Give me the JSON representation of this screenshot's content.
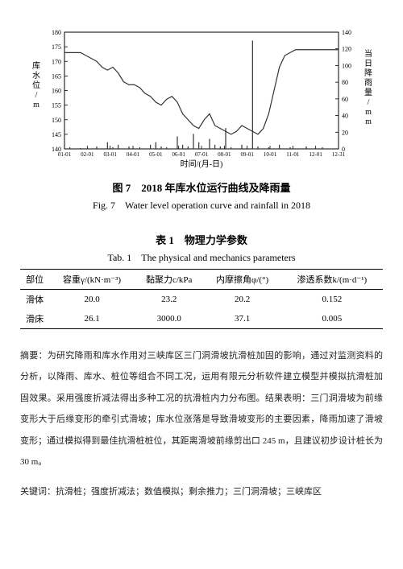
{
  "chart": {
    "type": "line+bar",
    "background_color": "#ffffff",
    "grid_color": "#cccccc",
    "axis_color": "#000000",
    "line_color": "#333333",
    "bar_color": "#333333",
    "line_width": 1.2,
    "bar_width": 1,
    "y1_label_vertical": "库水位/m",
    "y2_label_vertical": "当日降雨量/mm",
    "x_label": "时间/(月-日)",
    "y1_ticks": [
      140,
      145,
      150,
      155,
      160,
      165,
      170,
      175,
      180
    ],
    "y1_lim": [
      140,
      180
    ],
    "y2_ticks": [
      0,
      20,
      40,
      60,
      80,
      100,
      120,
      140
    ],
    "y2_lim": [
      0,
      140
    ],
    "x_ticks": [
      "01-01",
      "02-01",
      "03-01",
      "04-01",
      "05-01",
      "06-01",
      "07-01",
      "08-01",
      "09-01",
      "10-01",
      "11-01",
      "12-01",
      "12-31"
    ],
    "label_fontsize": 10,
    "tick_fontsize": 8,
    "water_level_series": [
      173,
      173,
      173,
      173,
      172,
      171,
      170,
      168,
      167,
      168,
      166,
      163,
      162,
      162,
      161,
      159,
      158,
      156,
      155,
      157,
      158,
      156,
      152,
      150,
      148,
      147,
      150,
      152,
      148,
      147,
      146,
      145,
      146,
      148,
      147,
      146,
      145,
      147,
      152,
      160,
      168,
      172,
      173,
      174,
      174,
      174,
      174,
      174,
      174,
      174,
      174,
      174
    ],
    "rainfall_series": [
      0,
      2,
      0,
      1,
      0,
      0,
      3,
      0,
      8,
      2,
      5,
      0,
      3,
      0,
      2,
      0,
      5,
      8,
      3,
      2,
      0,
      15,
      5,
      3,
      18,
      8,
      0,
      12,
      5,
      3,
      25,
      2,
      0,
      5,
      0,
      130,
      3,
      0,
      2,
      0,
      5,
      0,
      2,
      0,
      0,
      3,
      0,
      0,
      2,
      0,
      0,
      0
    ]
  },
  "fig7": {
    "zh": "图 7　2018 年库水位运行曲线及降雨量",
    "en": "Fig. 7　Water level operation curve and rainfall in 2018"
  },
  "table1": {
    "zh": "表 1　物理力学参数",
    "en": "Tab. 1　The physical and mechanics parameters",
    "columns": [
      "部位",
      "容重γ/(kN·m⁻³)",
      "黏聚力c/kPa",
      "内摩擦角φ/(°)",
      "渗透系数k/(m·d⁻¹)"
    ],
    "rows": [
      [
        "滑体",
        "20.0",
        "23.2",
        "20.2",
        "0.152"
      ],
      [
        "滑床",
        "26.1",
        "3000.0",
        "37.1",
        "0.005"
      ]
    ]
  },
  "abstract": {
    "label": "摘要：",
    "text": "为研究降雨和库水作用对三峡库区三门洞滑坡抗滑桩加固的影响，通过对监测资料的分析，以降雨、库水、桩位等组合不同工况，运用有限元分析软件建立模型并模拟抗滑桩加固效果。采用强度折减法得出多种工况的抗滑桩内力分布图。结果表明：三门洞滑坡为前缘变形大于后缘变形的牵引式滑坡；库水位涨落是导致滑坡变形的主要因素，降雨加速了滑坡变形；通过模拟得到最佳抗滑桩桩位，其距离滑坡前缘剪出口 245 m，且建议初步设计桩长为 30 m。"
  },
  "keywords": {
    "label": "关键词：",
    "text": "抗滑桩；强度折减法；数值模拟；剩余推力；三门洞滑坡；三峡库区"
  }
}
